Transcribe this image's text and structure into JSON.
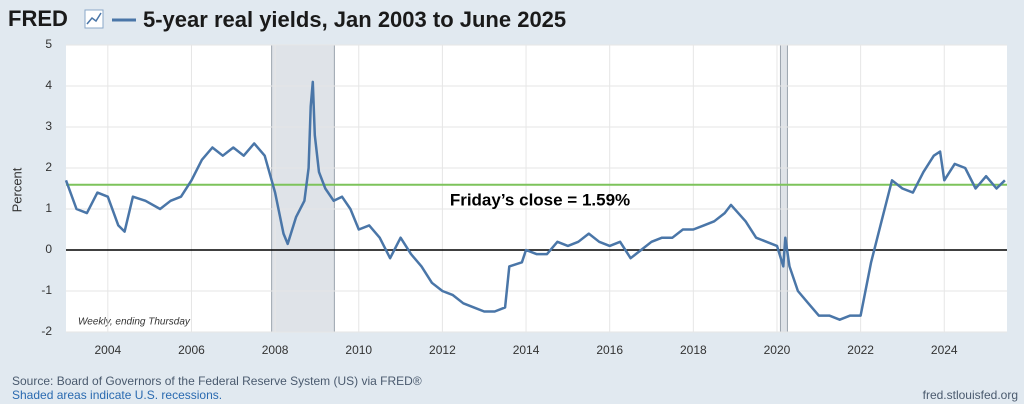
{
  "logo": "FRED",
  "chart_data": {
    "type": "line",
    "title": "5-year real yields, Jan 2003 to June 2025",
    "y_label": "Percent",
    "note": "Weekly, ending Thursday",
    "annotation": "Friday’s close = 1.59%",
    "reference_line": {
      "value": 1.59,
      "color": "#7dc35b"
    },
    "zero_line": 0,
    "recessions": [
      [
        2007.917,
        2009.417
      ],
      [
        2020.083,
        2020.25
      ]
    ],
    "x": [
      2003.0,
      2003.25,
      2003.5,
      2003.75,
      2004.0,
      2004.25,
      2004.4,
      2004.6,
      2004.9,
      2005.25,
      2005.5,
      2005.75,
      2006.0,
      2006.25,
      2006.5,
      2006.75,
      2007.0,
      2007.25,
      2007.5,
      2007.75,
      2008.0,
      2008.2,
      2008.3,
      2008.5,
      2008.7,
      2008.8,
      2008.85,
      2008.9,
      2008.95,
      2009.05,
      2009.2,
      2009.4,
      2009.6,
      2009.8,
      2010.0,
      2010.25,
      2010.5,
      2010.75,
      2011.0,
      2011.25,
      2011.5,
      2011.75,
      2012.0,
      2012.25,
      2012.5,
      2012.75,
      2013.0,
      2013.25,
      2013.5,
      2013.6,
      2013.9,
      2014.0,
      2014.25,
      2014.5,
      2014.75,
      2015.0,
      2015.25,
      2015.5,
      2015.75,
      2016.0,
      2016.25,
      2016.5,
      2016.75,
      2017.0,
      2017.25,
      2017.5,
      2017.75,
      2018.0,
      2018.25,
      2018.5,
      2018.75,
      2018.9,
      2019.25,
      2019.5,
      2019.75,
      2020.0,
      2020.15,
      2020.2,
      2020.3,
      2020.5,
      2020.75,
      2021.0,
      2021.25,
      2021.5,
      2021.75,
      2022.0,
      2022.25,
      2022.5,
      2022.75,
      2023.0,
      2023.25,
      2023.5,
      2023.75,
      2023.9,
      2024.0,
      2024.25,
      2024.5,
      2024.75,
      2025.0,
      2025.25,
      2025.45
    ],
    "series": [
      {
        "color": "#4a76a8",
        "values": [
          1.7,
          1.0,
          0.9,
          1.4,
          1.3,
          0.6,
          0.45,
          1.3,
          1.2,
          1.0,
          1.2,
          1.3,
          1.7,
          2.2,
          2.5,
          2.3,
          2.5,
          2.3,
          2.6,
          2.3,
          1.4,
          0.4,
          0.15,
          0.8,
          1.2,
          2.0,
          3.5,
          4.1,
          2.8,
          1.9,
          1.5,
          1.2,
          1.3,
          1.0,
          0.5,
          0.6,
          0.3,
          -0.2,
          0.3,
          -0.1,
          -0.4,
          -0.8,
          -1.0,
          -1.1,
          -1.3,
          -1.4,
          -1.5,
          -1.5,
          -1.4,
          -0.4,
          -0.3,
          0.0,
          -0.1,
          -0.1,
          0.2,
          0.1,
          0.2,
          0.4,
          0.2,
          0.1,
          0.2,
          -0.2,
          0.0,
          0.2,
          0.3,
          0.3,
          0.5,
          0.5,
          0.6,
          0.7,
          0.9,
          1.1,
          0.7,
          0.3,
          0.2,
          0.1,
          -0.4,
          0.3,
          -0.4,
          -1.0,
          -1.3,
          -1.6,
          -1.6,
          -1.7,
          -1.6,
          -1.6,
          -0.3,
          0.7,
          1.7,
          1.5,
          1.4,
          1.9,
          2.3,
          2.4,
          1.7,
          2.1,
          2.0,
          1.5,
          1.8,
          1.5,
          1.7
        ]
      }
    ],
    "xlim": [
      2003,
      2025.5
    ],
    "xticks": [
      2004,
      2006,
      2008,
      2010,
      2012,
      2014,
      2016,
      2018,
      2020,
      2022,
      2024
    ],
    "ylim": [
      -2,
      5
    ],
    "yticks": [
      -2,
      -1,
      0,
      1,
      2,
      3,
      4,
      5
    ],
    "grid": true
  },
  "footer": {
    "source": "Source: Board of Governors of the Federal Reserve System (US) via FRED®",
    "recession_note": "Shaded areas indicate U.S. recessions.",
    "site": "fred.stlouisfed.org"
  }
}
